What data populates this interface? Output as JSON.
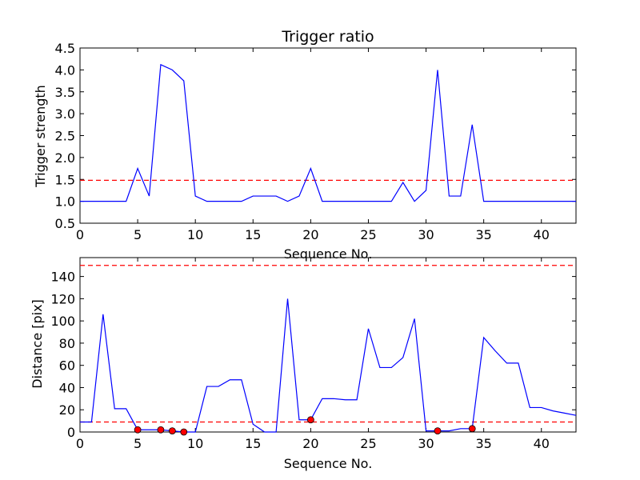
{
  "chart_data": [
    {
      "type": "line",
      "title": "Trigger ratio",
      "xlabel": "Sequence No.",
      "ylabel": "Trigger strength",
      "xlim": [
        0,
        43
      ],
      "ylim": [
        0.5,
        4.5
      ],
      "xticks": [
        0,
        5,
        10,
        15,
        20,
        25,
        30,
        35,
        40
      ],
      "xtick_labels": [
        "0",
        "5",
        "10",
        "15",
        "20",
        "25",
        "30",
        "35",
        "40"
      ],
      "yticks": [
        0.5,
        1.0,
        1.5,
        2.0,
        2.5,
        3.0,
        3.5,
        4.0,
        4.5
      ],
      "ytick_labels": [
        "0.5",
        "1.0",
        "1.5",
        "2.0",
        "2.5",
        "3.0",
        "3.5",
        "4.0",
        "4.5"
      ],
      "grid": false,
      "series": [
        {
          "color": "#0000ff",
          "style": "solid",
          "x": [
            0,
            1,
            2,
            3,
            4,
            5,
            6,
            7,
            8,
            9,
            10,
            11,
            12,
            13,
            14,
            15,
            16,
            17,
            18,
            19,
            20,
            21,
            22,
            23,
            24,
            25,
            26,
            27,
            28,
            29,
            30,
            31,
            32,
            33,
            34,
            35,
            36,
            37,
            38,
            39,
            40,
            41,
            42,
            43
          ],
          "y": [
            1.0,
            1.0,
            1.0,
            1.0,
            1.0,
            1.75,
            1.12,
            4.12,
            4.0,
            3.75,
            1.12,
            1.0,
            1.0,
            1.0,
            1.0,
            1.12,
            1.12,
            1.12,
            1.0,
            1.12,
            1.75,
            1.0,
            1.0,
            1.0,
            1.0,
            1.0,
            1.0,
            1.0,
            1.43,
            1.0,
            1.25,
            4.0,
            1.12,
            1.12,
            2.75,
            1.0,
            1.0,
            1.0,
            1.0,
            1.0,
            1.0,
            1.0,
            1.0,
            1.0
          ]
        }
      ],
      "hlines": [
        {
          "y": 1.48,
          "color": "#ff0000",
          "style": "dashed"
        }
      ]
    },
    {
      "type": "line",
      "title": "",
      "xlabel": "Sequence No.",
      "ylabel": "Distance [pix]",
      "xlim": [
        0,
        43
      ],
      "ylim": [
        0,
        157
      ],
      "xticks": [
        0,
        5,
        10,
        15,
        20,
        25,
        30,
        35,
        40
      ],
      "xtick_labels": [
        "0",
        "5",
        "10",
        "15",
        "20",
        "25",
        "30",
        "35",
        "40"
      ],
      "yticks": [
        0,
        20,
        40,
        60,
        80,
        100,
        120,
        140
      ],
      "ytick_labels": [
        "0",
        "20",
        "40",
        "60",
        "80",
        "100",
        "120",
        "140"
      ],
      "grid": false,
      "series": [
        {
          "color": "#0000ff",
          "style": "solid",
          "x": [
            0,
            1,
            2,
            3,
            4,
            5,
            6,
            7,
            8,
            9,
            10,
            11,
            12,
            13,
            14,
            15,
            16,
            17,
            18,
            19,
            20,
            21,
            22,
            23,
            24,
            25,
            26,
            27,
            28,
            29,
            30,
            31,
            32,
            33,
            34,
            35,
            36,
            37,
            38,
            39,
            40,
            41,
            42,
            43
          ],
          "y": [
            9,
            9,
            106,
            21,
            21,
            2,
            2,
            2,
            1,
            0,
            0,
            41,
            41,
            47,
            47,
            7,
            0,
            0,
            120,
            11,
            11,
            30,
            30,
            29,
            29,
            93,
            58,
            58,
            67,
            102,
            1,
            1,
            1,
            3,
            3,
            85,
            73,
            62,
            62,
            22,
            22,
            19,
            17,
            15
          ]
        }
      ],
      "markers": {
        "color": "#ff0000",
        "x": [
          5,
          7,
          8,
          9,
          20,
          31,
          34
        ],
        "y": [
          2,
          2,
          1,
          0,
          11,
          1,
          3
        ]
      },
      "hlines": [
        {
          "y": 150,
          "color": "#ff0000",
          "style": "dashed"
        },
        {
          "y": 9,
          "color": "#ff0000",
          "style": "dashed"
        }
      ]
    }
  ]
}
